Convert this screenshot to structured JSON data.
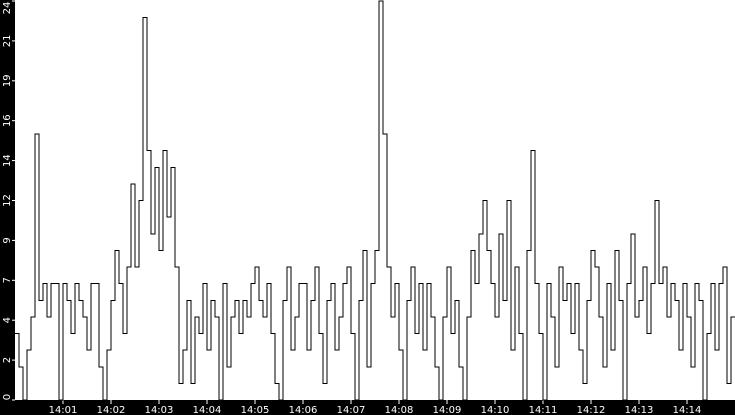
{
  "chart_data": {
    "type": "line",
    "step": true,
    "title": "",
    "xlabel": "",
    "ylabel": "",
    "x_start": "14:00:00",
    "x_end": "14:15:00",
    "sample_interval_seconds": 5,
    "ylim": [
      0,
      24
    ],
    "y_tick_labels": [
      "0",
      "2",
      "4",
      "7",
      "9",
      "12",
      "14",
      "16",
      "19",
      "21",
      "24"
    ],
    "x_tick_labels": [
      "14:01",
      "14:02",
      "14:03",
      "14:04",
      "14:05",
      "14:06",
      "14:07",
      "14:08",
      "14:09",
      "14:10",
      "14:11",
      "14:12",
      "14:13",
      "14:14"
    ],
    "grid": false,
    "colors": {
      "line": "#000000",
      "plot_bg": "#ffffff",
      "axis_bg": "#000000",
      "axis_text": "#ffffff"
    },
    "values": [
      4,
      2,
      0,
      3,
      5,
      16,
      6,
      7,
      5,
      7,
      7,
      0,
      7,
      6,
      4,
      7,
      6,
      5,
      3,
      7,
      7,
      2,
      0,
      3,
      6,
      9,
      7,
      4,
      8,
      13,
      8,
      12,
      23,
      15,
      10,
      14,
      9,
      15,
      11,
      14,
      8,
      1,
      3,
      6,
      1,
      5,
      4,
      7,
      3,
      6,
      5,
      0,
      7,
      2,
      5,
      6,
      4,
      6,
      5,
      7,
      8,
      6,
      5,
      7,
      4,
      1,
      0,
      6,
      8,
      3,
      5,
      7,
      7,
      3,
      6,
      8,
      4,
      1,
      6,
      7,
      3,
      5,
      7,
      8,
      4,
      0,
      6,
      9,
      2,
      7,
      9,
      24,
      16,
      8,
      5,
      7,
      3,
      0,
      6,
      8,
      4,
      7,
      3,
      7,
      5,
      2,
      0,
      5,
      8,
      4,
      6,
      2,
      0,
      5,
      9,
      7,
      10,
      12,
      9,
      7,
      5,
      10,
      6,
      12,
      3,
      8,
      4,
      0,
      9,
      15,
      7,
      4,
      0,
      7,
      5,
      2,
      8,
      6,
      7,
      4,
      7,
      3,
      1,
      6,
      9,
      8,
      5,
      2,
      7,
      3,
      9,
      6,
      0,
      7,
      10,
      5,
      6,
      8,
      4,
      7,
      12,
      7,
      8,
      5,
      7,
      6,
      3,
      7,
      5,
      2,
      7,
      6,
      0,
      4,
      7,
      3,
      7,
      8,
      1,
      5
    ]
  }
}
